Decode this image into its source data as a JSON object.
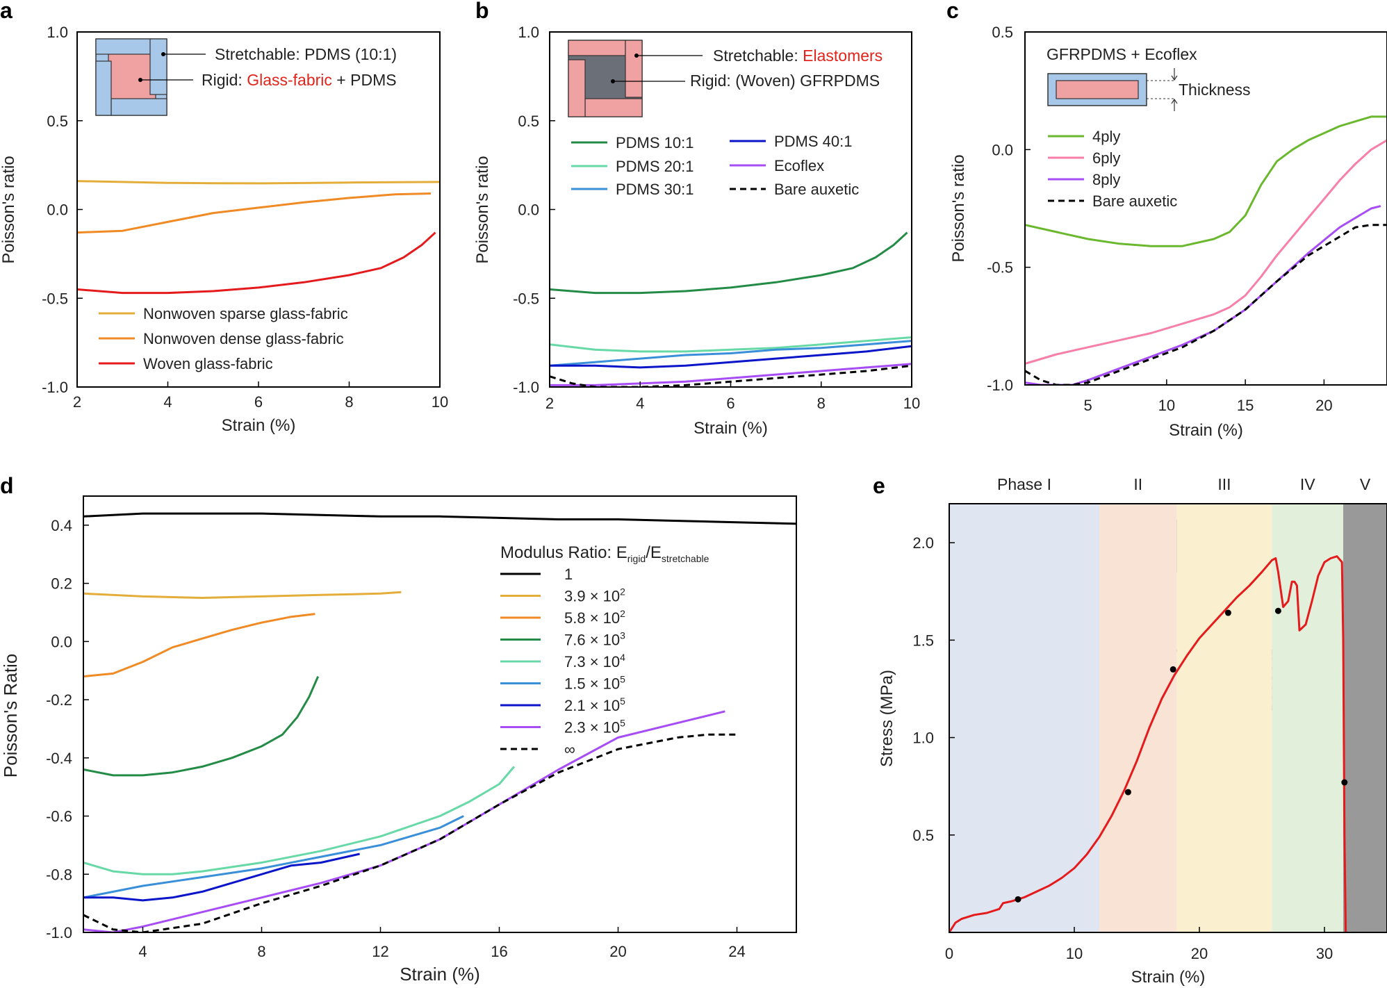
{
  "chart_data": [
    {
      "panel": "a",
      "type": "line",
      "panel_label": "a",
      "xlabel": "Strain (%)",
      "ylabel": "Poisson's ratio",
      "xlim": [
        2,
        10
      ],
      "ylim": [
        -1.0,
        1.0
      ],
      "xticks": [
        2,
        4,
        6,
        8,
        10
      ],
      "xticklabels": [
        "2",
        "4",
        "6",
        "8",
        "10"
      ],
      "yticks": [
        -1.0,
        -0.5,
        0.0,
        0.5,
        1.0
      ],
      "yticklabels": [
        "-1.0",
        "-0.5",
        "0.0",
        "0.5",
        "1.0"
      ],
      "inset": {
        "stretchable_label": "Stretchable: PDMS (10:1)",
        "rigid_prefix": "Rigid: ",
        "rigid_highlight": "Glass-fabric",
        "rigid_suffix": " + PDMS"
      },
      "series": [
        {
          "name": "Nonwoven sparse glass-fabric",
          "color": "#e3ad3a",
          "dashed": false,
          "x": [
            2,
            3,
            4,
            5,
            6,
            7,
            8,
            9,
            10
          ],
          "y": [
            0.16,
            0.155,
            0.15,
            0.148,
            0.147,
            0.149,
            0.152,
            0.154,
            0.155
          ]
        },
        {
          "name": "Nonwoven dense glass-fabric",
          "color": "#f08a24",
          "dashed": false,
          "x": [
            2,
            3,
            4,
            5,
            6,
            7,
            8,
            9,
            9.8
          ],
          "y": [
            -0.13,
            -0.12,
            -0.07,
            -0.02,
            0.01,
            0.04,
            0.065,
            0.085,
            0.09
          ]
        },
        {
          "name": "Woven glass-fabric",
          "color": "#e41a1c",
          "dashed": false,
          "x": [
            2,
            3,
            4,
            5,
            6,
            7,
            8,
            8.7,
            9.2,
            9.6,
            9.9
          ],
          "y": [
            -0.45,
            -0.47,
            -0.47,
            -0.46,
            -0.44,
            -0.41,
            -0.37,
            -0.33,
            -0.27,
            -0.2,
            -0.13
          ]
        }
      ]
    },
    {
      "panel": "b",
      "type": "line",
      "panel_label": "b",
      "xlabel": "Strain (%)",
      "ylabel": "Poisson's ratio",
      "xlim": [
        2,
        10
      ],
      "ylim": [
        -1.0,
        1.0
      ],
      "xticks": [
        2,
        4,
        6,
        8,
        10
      ],
      "xticklabels": [
        "2",
        "4",
        "6",
        "8",
        "10"
      ],
      "yticks": [
        -1.0,
        -0.5,
        0.0,
        0.5,
        1.0
      ],
      "yticklabels": [
        "-1.0",
        "-0.5",
        "0.0",
        "0.5",
        "1.0"
      ],
      "inset": {
        "stretchable_prefix": "Stretchable: ",
        "stretchable_highlight": "Elastomers",
        "rigid_label": "Rigid: (Woven) GFRPDMS"
      },
      "series": [
        {
          "name": "PDMS 10:1",
          "color": "#238b45",
          "dashed": false,
          "x": [
            2,
            3,
            4,
            5,
            6,
            7,
            8,
            8.7,
            9.2,
            9.6,
            9.9
          ],
          "y": [
            -0.45,
            -0.47,
            -0.47,
            -0.46,
            -0.44,
            -0.41,
            -0.37,
            -0.33,
            -0.27,
            -0.2,
            -0.13
          ]
        },
        {
          "name": "PDMS 20:1",
          "color": "#66d9a6",
          "dashed": false,
          "x": [
            2,
            3,
            4,
            5,
            6,
            7,
            8,
            9,
            10
          ],
          "y": [
            -0.76,
            -0.79,
            -0.8,
            -0.8,
            -0.79,
            -0.78,
            -0.76,
            -0.74,
            -0.72
          ]
        },
        {
          "name": "PDMS 30:1",
          "color": "#3a8fd9",
          "dashed": false,
          "x": [
            2,
            3,
            4,
            5,
            6,
            7,
            8,
            9,
            10
          ],
          "y": [
            -0.88,
            -0.86,
            -0.84,
            -0.82,
            -0.81,
            -0.79,
            -0.78,
            -0.76,
            -0.74
          ]
        },
        {
          "name": "PDMS 40:1",
          "color": "#0a14c8",
          "dashed": false,
          "x": [
            2,
            3,
            4,
            5,
            6,
            7,
            8,
            9,
            10
          ],
          "y": [
            -0.88,
            -0.88,
            -0.89,
            -0.88,
            -0.86,
            -0.84,
            -0.82,
            -0.8,
            -0.77
          ]
        },
        {
          "name": "Ecoflex",
          "color": "#a64df5",
          "dashed": false,
          "x": [
            2,
            3,
            4,
            5,
            6,
            7,
            8,
            9,
            10
          ],
          "y": [
            -0.99,
            -0.99,
            -0.98,
            -0.97,
            -0.95,
            -0.93,
            -0.91,
            -0.89,
            -0.87
          ]
        },
        {
          "name": "Bare auxetic",
          "color": "#000000",
          "dashed": true,
          "x": [
            2,
            2.5,
            3,
            4,
            5,
            6,
            7,
            8,
            9,
            10
          ],
          "y": [
            -0.94,
            -0.98,
            -1.0,
            -1.0,
            -0.99,
            -0.97,
            -0.95,
            -0.93,
            -0.91,
            -0.88
          ]
        }
      ]
    },
    {
      "panel": "c",
      "type": "line",
      "panel_label": "c",
      "xlabel": "Strain (%)",
      "ylabel": "Poisson's ratio",
      "xlim": [
        1,
        24
      ],
      "ylim": [
        -1.0,
        0.5
      ],
      "xticks": [
        5,
        10,
        15,
        20
      ],
      "xticklabels": [
        "5",
        "10",
        "15",
        "20"
      ],
      "yticks": [
        -1.0,
        -0.5,
        0.0,
        0.5
      ],
      "yticklabels": [
        "-1.0",
        "-0.5",
        "0.0",
        "0.5"
      ],
      "inset": {
        "title": "GFRPDMS + Ecoflex",
        "thickness_label": "Thickness"
      },
      "series": [
        {
          "name": "4ply",
          "color": "#6ab82e",
          "dashed": false,
          "x": [
            1,
            3,
            5,
            7,
            9,
            11,
            13,
            14,
            15,
            16,
            17,
            18,
            19,
            20,
            21,
            22,
            23,
            24
          ],
          "y": [
            -0.32,
            -0.35,
            -0.38,
            -0.4,
            -0.41,
            -0.41,
            -0.38,
            -0.35,
            -0.28,
            -0.15,
            -0.05,
            0.0,
            0.04,
            0.07,
            0.1,
            0.12,
            0.14,
            0.14
          ]
        },
        {
          "name": "6ply",
          "color": "#f77fa8",
          "dashed": false,
          "x": [
            1,
            3,
            5,
            7,
            9,
            11,
            13,
            14,
            15,
            16,
            17,
            18,
            19,
            20,
            21,
            22,
            23,
            24
          ],
          "y": [
            -0.91,
            -0.87,
            -0.84,
            -0.81,
            -0.78,
            -0.74,
            -0.7,
            -0.67,
            -0.62,
            -0.54,
            -0.45,
            -0.37,
            -0.29,
            -0.21,
            -0.13,
            -0.06,
            0.0,
            0.04
          ]
        },
        {
          "name": "8ply",
          "color": "#a64df5",
          "dashed": false,
          "x": [
            1,
            2,
            3,
            4,
            5,
            7,
            9,
            11,
            13,
            15,
            17,
            19,
            21,
            22,
            23,
            23.6
          ],
          "y": [
            -0.99,
            -1.0,
            -1.0,
            -1.0,
            -0.98,
            -0.93,
            -0.88,
            -0.83,
            -0.77,
            -0.68,
            -0.56,
            -0.44,
            -0.33,
            -0.29,
            -0.25,
            -0.24
          ]
        },
        {
          "name": "Bare auxetic",
          "color": "#000000",
          "dashed": true,
          "x": [
            1,
            2,
            3,
            4,
            5,
            7,
            9,
            11,
            13,
            15,
            17,
            19,
            21,
            22,
            23,
            24
          ],
          "y": [
            -0.94,
            -0.98,
            -1.0,
            -1.0,
            -0.99,
            -0.94,
            -0.89,
            -0.84,
            -0.77,
            -0.68,
            -0.56,
            -0.45,
            -0.37,
            -0.33,
            -0.32,
            -0.32
          ]
        }
      ]
    },
    {
      "panel": "d",
      "type": "line",
      "panel_label": "d",
      "xlabel": "Strain (%)",
      "ylabel": "Poisson's Ratio",
      "xlim": [
        2,
        26
      ],
      "ylim": [
        -1.0,
        0.5
      ],
      "xticks": [
        4,
        8,
        12,
        16,
        20,
        24
      ],
      "xticklabels": [
        "4",
        "8",
        "12",
        "16",
        "20",
        "24"
      ],
      "yticks": [
        -1.0,
        -0.8,
        -0.6,
        -0.4,
        -0.2,
        0.0,
        0.2,
        0.4
      ],
      "yticklabels": [
        "-1.0",
        "-0.8",
        "-0.6",
        "-0.4",
        "-0.2",
        "0.0",
        "0.2",
        "0.4"
      ],
      "legend_title_main": "Modulus Ratio: E",
      "legend_title_sub1": "rigid",
      "legend_title_mid": "/E",
      "legend_title_sub2": "stretchable",
      "series": [
        {
          "name": "1",
          "label_main": "1",
          "label_sup": "",
          "color": "#000000",
          "dashed": false,
          "x": [
            2,
            4,
            6,
            8,
            10,
            12,
            14,
            16,
            18,
            20,
            22,
            24,
            26
          ],
          "y": [
            0.43,
            0.44,
            0.44,
            0.44,
            0.435,
            0.43,
            0.43,
            0.425,
            0.42,
            0.42,
            0.415,
            0.41,
            0.405
          ]
        },
        {
          "name": "3.9 × 10^2",
          "label_main": "3.9 × 10",
          "label_sup": "2",
          "color": "#e3ad3a",
          "dashed": false,
          "x": [
            2,
            4,
            6,
            8,
            10,
            12,
            12.7
          ],
          "y": [
            0.165,
            0.155,
            0.15,
            0.155,
            0.16,
            0.165,
            0.17
          ]
        },
        {
          "name": "5.8 × 10^2",
          "label_main": "5.8 × 10",
          "label_sup": "2",
          "color": "#f08a24",
          "dashed": false,
          "x": [
            2,
            3,
            4,
            5,
            6,
            7,
            8,
            9,
            9.8
          ],
          "y": [
            -0.12,
            -0.11,
            -0.07,
            -0.02,
            0.01,
            0.04,
            0.065,
            0.085,
            0.095
          ]
        },
        {
          "name": "7.6 × 10^3",
          "label_main": "7.6 × 10",
          "label_sup": "3",
          "color": "#238b45",
          "dashed": false,
          "x": [
            2,
            3,
            4,
            5,
            6,
            7,
            8,
            8.7,
            9.2,
            9.6,
            9.9
          ],
          "y": [
            -0.44,
            -0.46,
            -0.46,
            -0.45,
            -0.43,
            -0.4,
            -0.36,
            -0.32,
            -0.26,
            -0.19,
            -0.12
          ]
        },
        {
          "name": "7.3 × 10^4",
          "label_main": "7.3 × 10",
          "label_sup": "4",
          "color": "#66d9a6",
          "dashed": false,
          "x": [
            2,
            3,
            4,
            5,
            6,
            8,
            10,
            12,
            14,
            15,
            16,
            16.5
          ],
          "y": [
            -0.76,
            -0.79,
            -0.8,
            -0.8,
            -0.79,
            -0.76,
            -0.72,
            -0.67,
            -0.6,
            -0.55,
            -0.49,
            -0.43
          ]
        },
        {
          "name": "1.5 × 10^5",
          "label_main": "1.5 × 10",
          "label_sup": "5",
          "color": "#3a8fd9",
          "dashed": false,
          "x": [
            2,
            4,
            6,
            8,
            10,
            12,
            14,
            14.8
          ],
          "y": [
            -0.88,
            -0.84,
            -0.81,
            -0.78,
            -0.74,
            -0.7,
            -0.64,
            -0.6
          ]
        },
        {
          "name": "2.1 × 10^5",
          "label_main": "2.1 × 10",
          "label_sup": "5",
          "color": "#0a14c8",
          "dashed": false,
          "x": [
            2,
            3,
            4,
            5,
            6,
            7,
            8,
            9,
            10,
            11.3
          ],
          "y": [
            -0.88,
            -0.88,
            -0.89,
            -0.88,
            -0.86,
            -0.83,
            -0.8,
            -0.77,
            -0.76,
            -0.73
          ]
        },
        {
          "name": "2.3 × 10^5",
          "label_main": "2.3 × 10",
          "label_sup": "5",
          "color": "#a64df5",
          "dashed": false,
          "x": [
            2,
            3,
            4,
            6,
            8,
            10,
            12,
            14,
            16,
            18,
            20,
            22,
            23.6
          ],
          "y": [
            -0.99,
            -1.0,
            -0.98,
            -0.93,
            -0.88,
            -0.83,
            -0.77,
            -0.68,
            -0.56,
            -0.44,
            -0.33,
            -0.28,
            -0.24
          ]
        },
        {
          "name": "∞",
          "label_main": "∞",
          "label_sup": "",
          "color": "#000000",
          "dashed": true,
          "x": [
            2,
            3,
            4,
            6,
            8,
            10,
            12,
            14,
            16,
            18,
            20,
            22,
            23,
            24
          ],
          "y": [
            -0.94,
            -0.99,
            -1.0,
            -0.97,
            -0.9,
            -0.84,
            -0.77,
            -0.68,
            -0.56,
            -0.45,
            -0.37,
            -0.33,
            -0.32,
            -0.32
          ]
        }
      ]
    },
    {
      "panel": "e",
      "type": "line",
      "panel_label": "e",
      "xlabel": "Strain (%)",
      "ylabel": "Stress (MPa)",
      "xlim": [
        0,
        35
      ],
      "ylim": [
        0,
        2.2
      ],
      "xticks": [
        0,
        10,
        20,
        30
      ],
      "xticklabels": [
        "0",
        "10",
        "20",
        "30"
      ],
      "yticks": [
        0.5,
        1.0,
        1.5,
        2.0
      ],
      "yticklabels": [
        "0.5",
        "1.0",
        "1.5",
        "2.0"
      ],
      "phases": [
        {
          "label": "Phase I",
          "x0": 0,
          "x1": 12,
          "color": "#dfe6f2"
        },
        {
          "label": "II",
          "x0": 12,
          "x1": 18.2,
          "color": "#f8e3d5"
        },
        {
          "label": "III",
          "x0": 18.2,
          "x1": 25.8,
          "color": "#faf0cf"
        },
        {
          "label": "IV",
          "x0": 25.8,
          "x1": 31.5,
          "color": "#e2efda"
        },
        {
          "label": "V",
          "x0": 31.5,
          "x1": 35,
          "color": "#999999"
        }
      ],
      "series": [
        {
          "name": "Stress-strain",
          "color": "#e41a1c",
          "dashed": false,
          "x": [
            0,
            0.5,
            1,
            2,
            3,
            4,
            4.3,
            5,
            6,
            7,
            8,
            9,
            10,
            11,
            12,
            13,
            14,
            15,
            16,
            17,
            18,
            19,
            20,
            21,
            22,
            23,
            24,
            25,
            25.8,
            26.1,
            26.3,
            26.7,
            27.1,
            27.4,
            27.6,
            27.8,
            28.0,
            28.5,
            29,
            29.5,
            30,
            30.5,
            31,
            31.4,
            31.5,
            31.6,
            31.7
          ],
          "y": [
            0.0,
            0.05,
            0.07,
            0.09,
            0.1,
            0.12,
            0.15,
            0.16,
            0.18,
            0.21,
            0.24,
            0.28,
            0.33,
            0.4,
            0.49,
            0.6,
            0.73,
            0.88,
            1.05,
            1.2,
            1.32,
            1.42,
            1.51,
            1.58,
            1.65,
            1.72,
            1.78,
            1.85,
            1.91,
            1.92,
            1.85,
            1.67,
            1.7,
            1.8,
            1.8,
            1.78,
            1.55,
            1.58,
            1.7,
            1.83,
            1.9,
            1.92,
            1.93,
            1.9,
            1.5,
            0.5,
            0.0
          ]
        },
        {
          "name": "Markers",
          "color": "#000000",
          "dashed": false,
          "x": [
            5.5,
            14.3,
            17.9,
            22.3,
            26.3,
            31.6
          ],
          "y": [
            0.17,
            0.72,
            1.35,
            1.64,
            1.65,
            0.77
          ]
        }
      ]
    }
  ]
}
